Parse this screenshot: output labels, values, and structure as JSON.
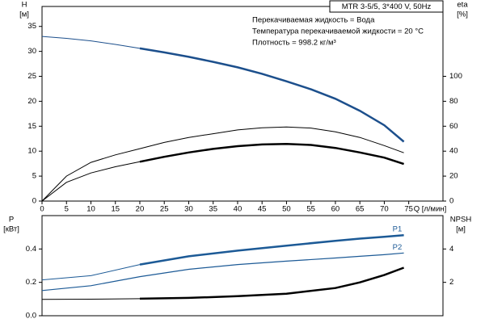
{
  "chart_data": [
    {
      "type": "line",
      "title": "MTR 3-5/5, 3*400 V, 50Hz",
      "annotations": [
        "Перекачиваемая жидкость = Вода",
        "Температура перекачиваемой жидкости = 20 °C",
        "Плотность = 998.2 кг/м³"
      ],
      "ylabel": "H",
      "yunit": "[м]",
      "y2label": "eta",
      "y2unit": "[%]",
      "xlabel": "Q [л/мин]",
      "x": [
        0,
        5,
        10,
        15,
        20,
        25,
        30,
        35,
        40,
        45,
        50,
        55,
        60,
        65,
        70,
        74
      ],
      "xlim": [
        0,
        82
      ],
      "xticks": [
        0,
        5,
        10,
        15,
        20,
        25,
        30,
        35,
        40,
        45,
        50,
        55,
        60,
        65,
        70,
        75
      ],
      "ylim": [
        0,
        39
      ],
      "yticks": [
        0,
        5,
        10,
        15,
        20,
        25,
        30,
        35
      ],
      "y2lim": [
        0,
        156
      ],
      "y2ticks": [
        0,
        20,
        40,
        60,
        80,
        100
      ],
      "series": [
        {
          "color": "#1c4f8c",
          "width": 1,
          "values": [
            33,
            32.6,
            32.1,
            31.4,
            30.6,
            null,
            null,
            null,
            null,
            null,
            null,
            null,
            null,
            null,
            null,
            null
          ]
        },
        {
          "color": "#1c4f8c",
          "width": 2.5,
          "values": [
            null,
            null,
            null,
            null,
            30.6,
            29.8,
            28.9,
            27.9,
            26.8,
            25.5,
            24.0,
            22.4,
            20.5,
            18.1,
            15.2,
            11.9
          ]
        },
        {
          "color": "#000000",
          "width": 1,
          "axis": "y2",
          "values": [
            0,
            20,
            31,
            37,
            42,
            47,
            51,
            54,
            57,
            58.7,
            59.4,
            58.5,
            55.5,
            51,
            44.5,
            38.7
          ]
        },
        {
          "color": "#000000",
          "width": 1,
          "axis": "y2",
          "values": [
            0,
            15,
            22.5,
            27.5,
            31.5,
            null,
            null,
            null,
            null,
            null,
            null,
            null,
            null,
            null,
            null,
            null
          ]
        },
        {
          "color": "#000000",
          "width": 2.5,
          "axis": "y2",
          "values": [
            null,
            null,
            null,
            null,
            31.5,
            35.5,
            39,
            41.8,
            44,
            45.4,
            45.8,
            45,
            42.6,
            39,
            34.8,
            29.7
          ]
        }
      ]
    },
    {
      "type": "line",
      "ylabel": "P",
      "yunit": "[кВт]",
      "y2label": "NPSH",
      "y2unit": "[м]",
      "x": [
        0,
        10,
        20,
        30,
        40,
        50,
        60,
        65,
        70,
        74
      ],
      "xlim": [
        0,
        82
      ],
      "ylim": [
        0,
        0.6
      ],
      "yticks": [
        {
          "value": 0,
          "label": "0.0"
        },
        0.2,
        0.4
      ],
      "y2lim": [
        0,
        6
      ],
      "y2ticks": [
        2,
        4
      ],
      "series": [
        {
          "color": "#1c5a96",
          "width": 1,
          "values": [
            0.215,
            0.24,
            0.307,
            null,
            null,
            null,
            null,
            null,
            null,
            null
          ]
        },
        {
          "name": "P1",
          "color": "#1c5a96",
          "width": 2.5,
          "values": [
            null,
            null,
            0.307,
            0.356,
            0.39,
            0.42,
            0.449,
            0.462,
            0.473,
            0.483
          ]
        },
        {
          "name": "P2",
          "color": "#1c5a96",
          "width": 1.2,
          "values": [
            0.151,
            0.18,
            0.234,
            0.278,
            0.307,
            0.327,
            0.346,
            0.356,
            0.366,
            0.376
          ]
        },
        {
          "color": "#000000",
          "width": 1,
          "axis": "y2",
          "values": [
            0.98,
            0.99,
            1.02,
            null,
            null,
            null,
            null,
            null,
            null,
            null
          ]
        },
        {
          "color": "#000000",
          "width": 2.5,
          "axis": "y2",
          "values": [
            null,
            null,
            1.02,
            1.07,
            1.17,
            1.32,
            1.66,
            2.0,
            2.44,
            2.88
          ]
        }
      ]
    }
  ]
}
